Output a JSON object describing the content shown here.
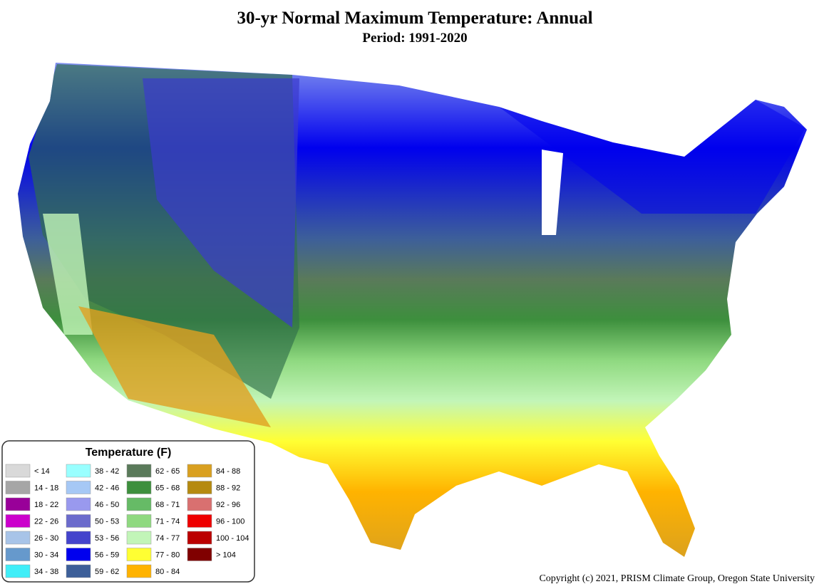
{
  "header": {
    "title": "30-yr Normal Maximum Temperature: Annual",
    "subtitle": "Period: 1991-2020"
  },
  "legend": {
    "title": "Temperature (F)",
    "entries": [
      {
        "label": "< 14",
        "color": "#d9d9d9"
      },
      {
        "label": "14 - 18",
        "color": "#a6a6a6"
      },
      {
        "label": "18 - 22",
        "color": "#990099"
      },
      {
        "label": "22 - 26",
        "color": "#cc00cc"
      },
      {
        "label": "26 - 30",
        "color": "#a8c4e8"
      },
      {
        "label": "30 - 34",
        "color": "#6699cc"
      },
      {
        "label": "34 - 38",
        "color": "#40eef8"
      },
      {
        "label": "38 - 42",
        "color": "#99ffff"
      },
      {
        "label": "42 - 46",
        "color": "#a6c8f5"
      },
      {
        "label": "46 - 50",
        "color": "#9999ee"
      },
      {
        "label": "50 - 53",
        "color": "#6b6bcc"
      },
      {
        "label": "53 - 56",
        "color": "#4444cc"
      },
      {
        "label": "56 - 59",
        "color": "#0000ee"
      },
      {
        "label": "59 - 62",
        "color": "#3d5f99"
      },
      {
        "label": "62 - 65",
        "color": "#5a7a5a"
      },
      {
        "label": "65 - 68",
        "color": "#3d8f3d"
      },
      {
        "label": "68 - 71",
        "color": "#66bb66"
      },
      {
        "label": "71 - 74",
        "color": "#8fd980"
      },
      {
        "label": "74 - 77",
        "color": "#c2f5b8"
      },
      {
        "label": "77 - 80",
        "color": "#ffff33"
      },
      {
        "label": "80 - 84",
        "color": "#ffb300"
      },
      {
        "label": "84 - 88",
        "color": "#d9a020"
      },
      {
        "label": "88 - 92",
        "color": "#b58a10"
      },
      {
        "label": "92 - 96",
        "color": "#d97070"
      },
      {
        "label": "96 - 100",
        "color": "#ee0000"
      },
      {
        "label": "100 - 104",
        "color": "#bb0000"
      },
      {
        "label": "> 104",
        "color": "#800000"
      }
    ]
  },
  "footer": {
    "copyright": "Copyright (c) 2021, PRISM Climate Group, Oregon State University"
  }
}
